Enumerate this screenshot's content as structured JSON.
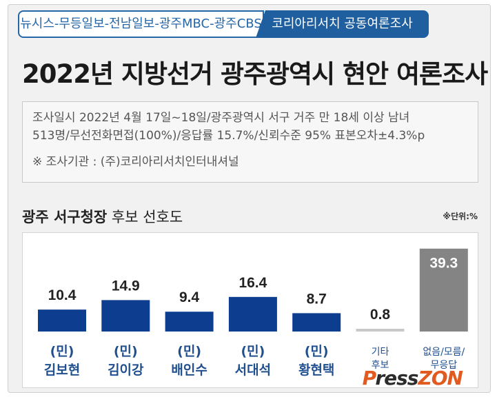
{
  "header": {
    "left_tab": "뉴시스-무등일보-전남일보-광주MBC-광주CBS",
    "right_tab": "코리아리서치 공동여론조사"
  },
  "title": "2022년 지방선거 광주광역시 현안 여론조사",
  "survey": {
    "line1": "조사일시 2022년 4월 17일~18일/광주광역시 서구 거주 만 18세 이상 남녀",
    "line2": "513명/무선전화면접(100%)/응답률 15.7%/신뢰수준 95% 표본오차±4.3%p",
    "org": "※ 조사기관 : (주)코리아리서치인터내셔널"
  },
  "chart_title_bold": "광주 서구청장",
  "chart_title_rest": " 후보 선호도",
  "unit": "※단위:%",
  "watermark": {
    "p": "P",
    "ress": "ress",
    "zon": "ZON"
  },
  "colors": {
    "candidate": "#0d3d8f",
    "other": "#c8c8c8",
    "none": "#848484"
  },
  "chart_data": {
    "type": "bar",
    "title": "광주 서구청장 후보 선호도",
    "categories": [
      [
        "(민)",
        "김보현"
      ],
      [
        "(민)",
        "김이강"
      ],
      [
        "(민)",
        "배인수"
      ],
      [
        "(민)",
        "서대석"
      ],
      [
        "(민)",
        "황현택"
      ],
      [
        "기타",
        "후보"
      ],
      [
        "없음/모름/",
        "무응답"
      ]
    ],
    "values": [
      10.4,
      14.9,
      9.4,
      16.4,
      8.7,
      0.8,
      39.3
    ],
    "value_labels": [
      "10.4",
      "14.9",
      "9.4",
      "16.4",
      "8.7",
      "0.8",
      "39.3"
    ],
    "bar_colors": [
      "#0d3d8f",
      "#0d3d8f",
      "#0d3d8f",
      "#0d3d8f",
      "#0d3d8f",
      "#c8c8c8",
      "#848484"
    ],
    "unit": "%",
    "ylim": [
      0,
      40
    ]
  }
}
